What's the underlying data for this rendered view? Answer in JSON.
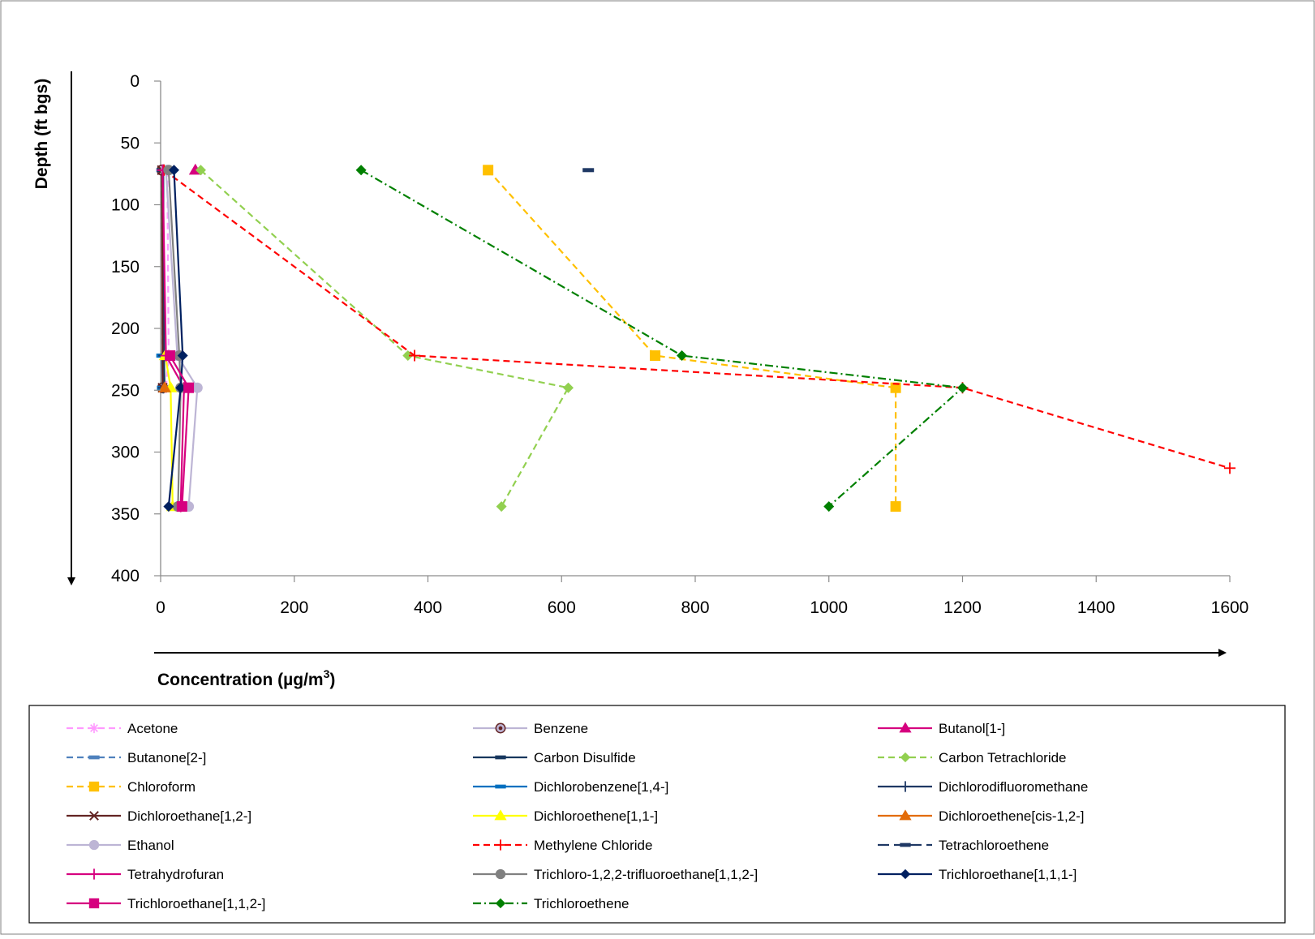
{
  "chart_data": {
    "type": "line",
    "xlabel": "Concentration (µg/m",
    "xlabel_superscript": "3",
    "xlabel_suffix": ")",
    "ylabel": "Depth (ft bgs)",
    "xlim": [
      0,
      1600
    ],
    "ylim": [
      0,
      400
    ],
    "y_inverted": true,
    "x_ticks": [
      "0",
      "200",
      "400",
      "600",
      "800",
      "1000",
      "1200",
      "1400",
      "1600"
    ],
    "y_ticks": [
      "0",
      "50",
      "100",
      "150",
      "200",
      "250",
      "300",
      "350",
      "400"
    ],
    "grid": false,
    "legend_position": "bottom",
    "series": [
      {
        "name": "Acetone",
        "color": "#FF99FF",
        "dash": "dash",
        "marker": "star",
        "points": [
          [
            10,
            72
          ],
          [
            12,
            222
          ],
          [
            8,
            248
          ]
        ]
      },
      {
        "name": "Benzene",
        "color": "#BDB5D5",
        "dash": "solid",
        "marker": "circle-dot",
        "points": [
          [
            2,
            72
          ],
          [
            3,
            248
          ]
        ]
      },
      {
        "name": "Butanol[1-]",
        "color": "#D6007F",
        "dash": "solid",
        "marker": "triangle",
        "points": [
          [
            52,
            72
          ]
        ]
      },
      {
        "name": "Butanone[2-]",
        "color": "#4F81BD",
        "dash": "dash",
        "marker": "dash",
        "points": [
          [
            2,
            72
          ],
          [
            3,
            222
          ]
        ]
      },
      {
        "name": "Carbon Disulfide",
        "color": "#17375E",
        "dash": "solid",
        "marker": "dash",
        "points": [
          [
            3,
            72
          ],
          [
            5,
            222
          ],
          [
            6,
            248
          ]
        ]
      },
      {
        "name": "Carbon Tetrachloride",
        "color": "#92D050",
        "dash": "dash",
        "marker": "diamond",
        "points": [
          [
            60,
            72
          ],
          [
            370,
            222
          ],
          [
            610,
            248
          ],
          [
            510,
            344
          ]
        ]
      },
      {
        "name": "Chloroform",
        "color": "#FFC000",
        "dash": "dash",
        "marker": "square",
        "points": [
          [
            490,
            72
          ],
          [
            740,
            222
          ],
          [
            1100,
            248
          ],
          [
            1100,
            344
          ]
        ]
      },
      {
        "name": "Dichlorobenzene[1,4-]",
        "color": "#0070C0",
        "dash": "solid",
        "marker": "dash",
        "points": [
          [
            2,
            222
          ],
          [
            3,
            248
          ]
        ]
      },
      {
        "name": "Dichlorodifluoromethane",
        "color": "#1F3864",
        "dash": "solid",
        "marker": "plus",
        "points": [
          [
            4,
            72
          ],
          [
            5,
            222
          ],
          [
            4,
            248
          ]
        ]
      },
      {
        "name": "Dichloroethane[1,2-]",
        "color": "#632423",
        "dash": "solid",
        "marker": "x",
        "points": [
          [
            2,
            72
          ],
          [
            3,
            248
          ]
        ]
      },
      {
        "name": "Dichloroethene[1,1-]",
        "color": "#FFFF00",
        "dash": "solid",
        "marker": "triangle",
        "points": [
          [
            7,
            222
          ],
          [
            15,
            248
          ],
          [
            18,
            344
          ]
        ]
      },
      {
        "name": "Dichloroethene[cis-1,2-]",
        "color": "#E36C09",
        "dash": "solid",
        "marker": "triangle",
        "points": [
          [
            6,
            248
          ]
        ]
      },
      {
        "name": "Ethanol",
        "color": "#BDB5D5",
        "dash": "solid",
        "marker": "circle",
        "points": [
          [
            8,
            72
          ],
          [
            25,
            222
          ],
          [
            55,
            248
          ],
          [
            42,
            344
          ]
        ]
      },
      {
        "name": "Methylene Chloride",
        "color": "#FF0000",
        "dash": "dash",
        "marker": "plus",
        "points": [
          [
            5,
            72
          ],
          [
            380,
            222
          ],
          [
            1200,
            248
          ],
          [
            1600,
            313
          ]
        ]
      },
      {
        "name": "Tetrachloroethene",
        "color": "#1F3864",
        "dash": "longdash",
        "marker": "dash",
        "points": [
          [
            640,
            72
          ]
        ]
      },
      {
        "name": "Tetrahydrofuran",
        "color": "#D6007F",
        "dash": "solid",
        "marker": "plus",
        "points": [
          [
            3,
            72
          ],
          [
            8,
            222
          ],
          [
            35,
            248
          ],
          [
            30,
            344
          ]
        ]
      },
      {
        "name": "Trichloro-1,2,2-trifluoroethane[1,1,2-]",
        "color": "#808080",
        "dash": "solid",
        "marker": "circle",
        "points": [
          [
            12,
            72
          ],
          [
            28,
            222
          ],
          [
            30,
            248
          ],
          [
            26,
            344
          ]
        ]
      },
      {
        "name": "Trichloroethane[1,1,1-]",
        "color": "#002060",
        "dash": "solid",
        "marker": "diamond",
        "points": [
          [
            20,
            72
          ],
          [
            33,
            222
          ],
          [
            30,
            248
          ],
          [
            12,
            344
          ]
        ]
      },
      {
        "name": "Trichloroethane[1,1,2-]",
        "color": "#D6007F",
        "dash": "solid",
        "marker": "square",
        "points": [
          [
            14,
            222
          ],
          [
            42,
            248
          ],
          [
            32,
            344
          ]
        ]
      },
      {
        "name": "Trichloroethene",
        "color": "#008000",
        "dash": "dashdot",
        "marker": "diamond",
        "points": [
          [
            300,
            72
          ],
          [
            780,
            222
          ],
          [
            1200,
            248
          ],
          [
            1000,
            344
          ]
        ]
      }
    ]
  }
}
